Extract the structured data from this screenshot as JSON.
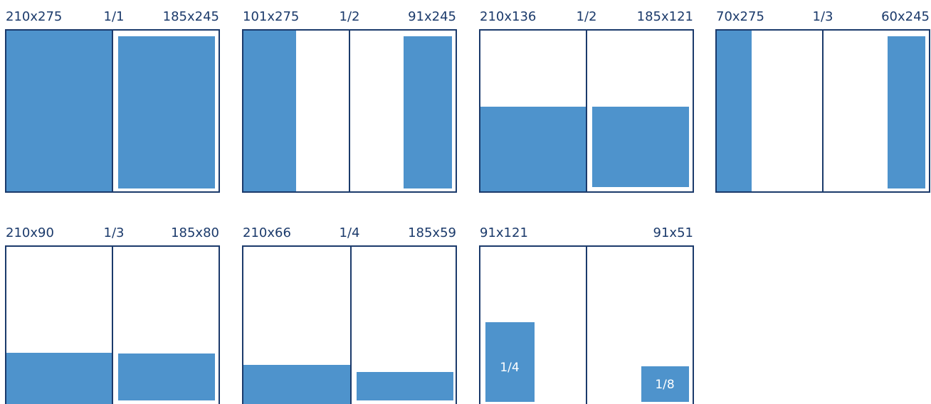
{
  "panels": [
    {
      "left": "210x275",
      "fraction": "1/1",
      "right": "185x245"
    },
    {
      "left": "101x275",
      "fraction": "1/2",
      "right": "91x245"
    },
    {
      "left": "210x136",
      "fraction": "1/2",
      "right": "185x121"
    },
    {
      "left": "70x275",
      "fraction": "1/3",
      "right": "60x245"
    },
    {
      "left": "210x90",
      "fraction": "1/3",
      "right": "185x80"
    },
    {
      "left": "210x66",
      "fraction": "1/4",
      "right": "185x59"
    },
    {
      "left": "91x121",
      "right": "91x51",
      "inner_left": "1/4",
      "inner_right": "1/8"
    }
  ]
}
